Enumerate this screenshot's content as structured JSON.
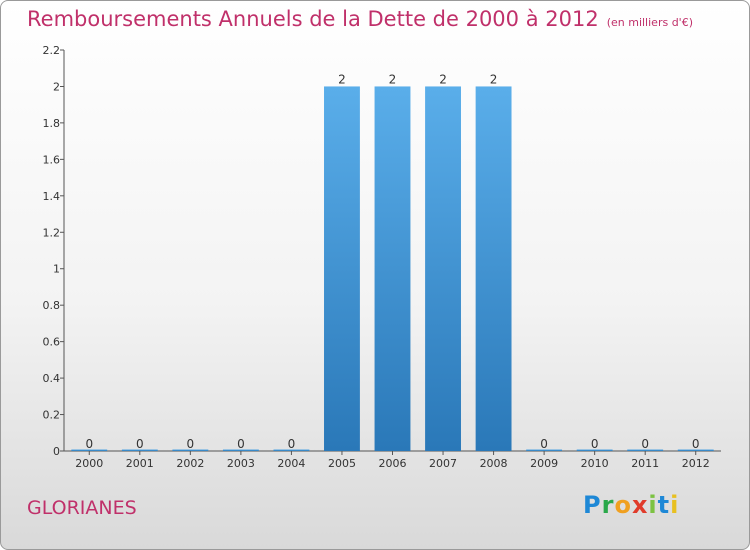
{
  "title": "Remboursements Annuels de la Dette de 2000 à 2012",
  "unit": "(en milliers d'€)",
  "commune": "GLORIANES",
  "logo": "Proxiti",
  "chart_data": {
    "type": "bar",
    "categories": [
      "2000",
      "2001",
      "2002",
      "2003",
      "2004",
      "2005",
      "2006",
      "2007",
      "2008",
      "2009",
      "2010",
      "2011",
      "2012"
    ],
    "values": [
      0,
      0,
      0,
      0,
      0,
      2,
      2,
      2,
      2,
      0,
      0,
      0,
      0
    ],
    "data_labels": [
      "0",
      "0",
      "0",
      "0",
      "0",
      "2",
      "2",
      "2",
      "2",
      "0",
      "0",
      "0",
      "0"
    ],
    "yticks": [
      "0",
      "0.2",
      "0.4",
      "0.6",
      "0.8",
      "1",
      "1.2",
      "1.4",
      "1.6",
      "1.8",
      "2",
      "2.2"
    ],
    "ylim": [
      0,
      2.2
    ],
    "bar_color": "#3a92d6",
    "grid": false
  }
}
